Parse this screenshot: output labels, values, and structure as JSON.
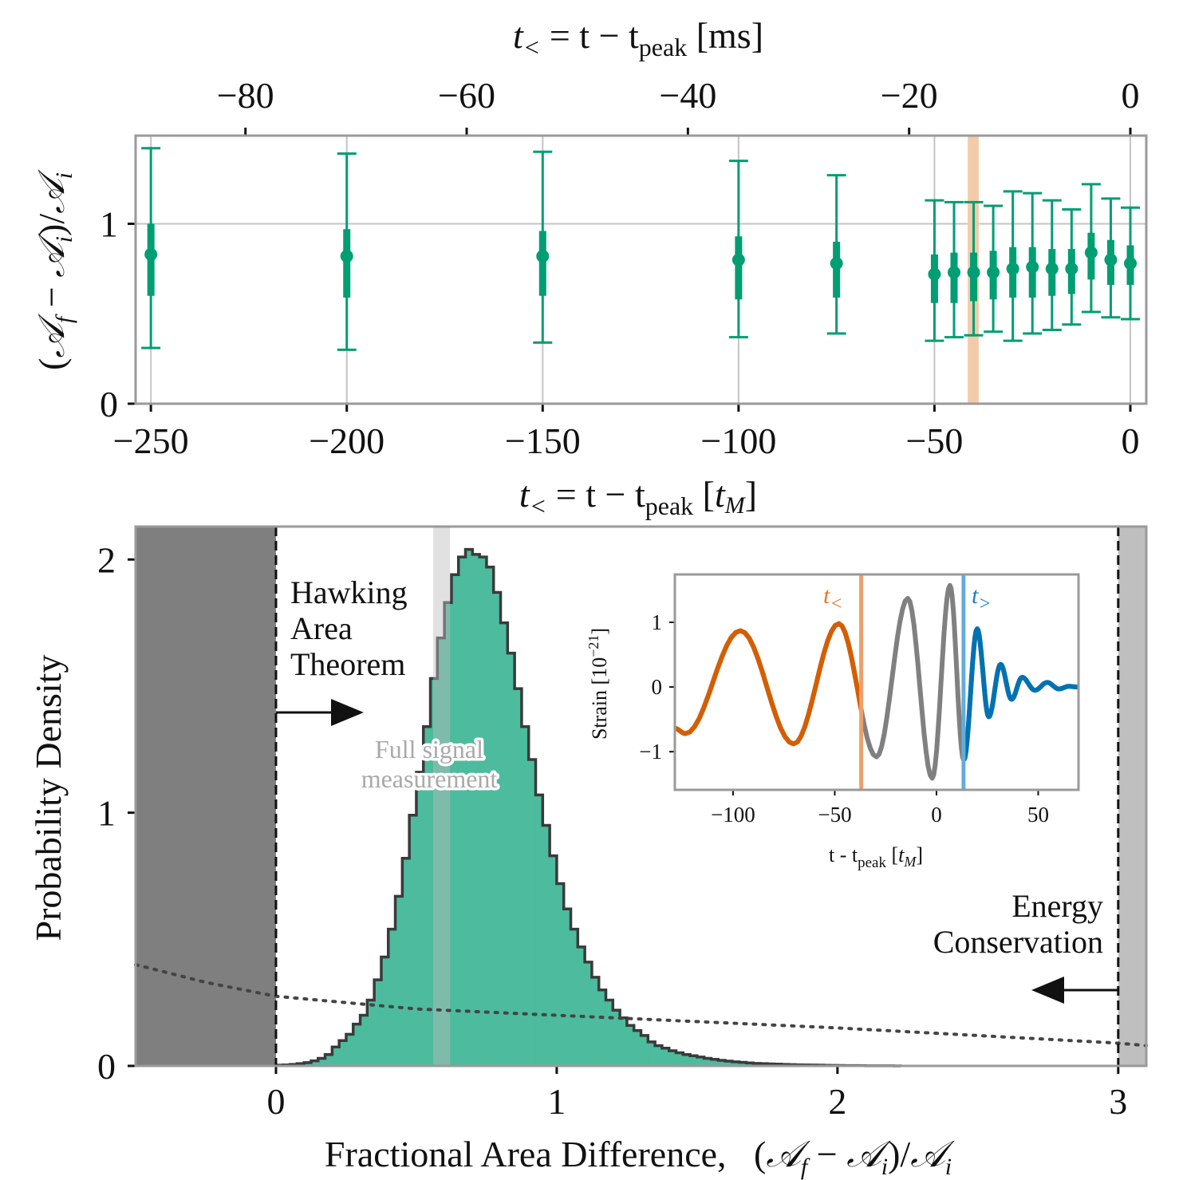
{
  "chart_data": [
    {
      "type": "scatter",
      "panel": "top",
      "xlabel_top": {
        "t": "t",
        "sub": "<",
        "mid": " = t − t",
        "sub2": "peak",
        "unit": " [ms]"
      },
      "xlabel": {
        "t": "t",
        "sub": "<",
        "mid": " = t − t",
        "sub2": "peak",
        "unit_open": " [",
        "unit_t": "t",
        "unit_sub": "M",
        "unit_close": "]"
      },
      "ylabel": {
        "open": "(",
        "a1": "𝒜",
        "s1": "f",
        "minus": " − ",
        "a2": "𝒜",
        "s2": "i",
        "div": ")/",
        "a3": "𝒜",
        "s3": "i"
      },
      "xlim": [
        -253.9,
        4.07
      ],
      "ylim": [
        0,
        1.49
      ],
      "xticks": [
        -250,
        -200,
        -150,
        -100,
        -50,
        0
      ],
      "xtick_labels": [
        "−250",
        "−200",
        "−150",
        "−100",
        "−50",
        "0"
      ],
      "top_xticks_ms": [
        -80,
        -60,
        -40,
        -20,
        0
      ],
      "top_xtick_labels": [
        "−80",
        "−60",
        "−40",
        "−20",
        "0"
      ],
      "yticks": [
        0,
        1
      ],
      "ytick_labels": [
        "0",
        "1"
      ],
      "grid": true,
      "color": "#009e73",
      "highlight_band": {
        "range": [
          -41.5,
          -38.7
        ],
        "color": "#f2cba9"
      },
      "points": [
        {
          "x": -250,
          "y": 0.83,
          "outer": [
            0.31,
            1.42
          ],
          "inner": [
            0.6,
            1.0
          ]
        },
        {
          "x": -200,
          "y": 0.82,
          "outer": [
            0.3,
            1.39
          ],
          "inner": [
            0.59,
            0.97
          ]
        },
        {
          "x": -150,
          "y": 0.82,
          "outer": [
            0.34,
            1.4
          ],
          "inner": [
            0.6,
            0.96
          ]
        },
        {
          "x": -100,
          "y": 0.8,
          "outer": [
            0.37,
            1.35
          ],
          "inner": [
            0.58,
            0.93
          ]
        },
        {
          "x": -75,
          "y": 0.78,
          "outer": [
            0.39,
            1.27
          ],
          "inner": [
            0.59,
            0.9
          ]
        },
        {
          "x": -50,
          "y": 0.72,
          "outer": [
            0.35,
            1.13
          ],
          "inner": [
            0.56,
            0.83
          ]
        },
        {
          "x": -45,
          "y": 0.73,
          "outer": [
            0.37,
            1.12
          ],
          "inner": [
            0.56,
            0.84
          ]
        },
        {
          "x": -40,
          "y": 0.73,
          "outer": [
            0.38,
            1.12
          ],
          "inner": [
            0.57,
            0.84
          ]
        },
        {
          "x": -35,
          "y": 0.73,
          "outer": [
            0.4,
            1.1
          ],
          "inner": [
            0.58,
            0.85
          ]
        },
        {
          "x": -30,
          "y": 0.75,
          "outer": [
            0.35,
            1.18
          ],
          "inner": [
            0.59,
            0.87
          ]
        },
        {
          "x": -25,
          "y": 0.76,
          "outer": [
            0.39,
            1.17
          ],
          "inner": [
            0.59,
            0.87
          ]
        },
        {
          "x": -20,
          "y": 0.75,
          "outer": [
            0.41,
            1.13
          ],
          "inner": [
            0.6,
            0.86
          ]
        },
        {
          "x": -15,
          "y": 0.75,
          "outer": [
            0.44,
            1.08
          ],
          "inner": [
            0.61,
            0.86
          ]
        },
        {
          "x": -10,
          "y": 0.84,
          "outer": [
            0.51,
            1.22
          ],
          "inner": [
            0.69,
            0.95
          ]
        },
        {
          "x": -5,
          "y": 0.8,
          "outer": [
            0.48,
            1.14
          ],
          "inner": [
            0.66,
            0.91
          ]
        },
        {
          "x": 0,
          "y": 0.78,
          "outer": [
            0.47,
            1.09
          ],
          "inner": [
            0.66,
            0.88
          ]
        }
      ]
    },
    {
      "type": "bar",
      "panel": "bottom",
      "xlabel": {
        "text": "Fractional Area Difference,   ",
        "open": "(",
        "a1": "𝒜",
        "s1": "f",
        "minus": " − ",
        "a2": "𝒜",
        "s2": "i",
        "div": ")/",
        "a3": "𝒜",
        "s3": "i"
      },
      "ylabel": "Probability Density",
      "xlim": [
        -0.5,
        3.1
      ],
      "ylim": [
        0,
        2.13
      ],
      "xticks": [
        0,
        1,
        2,
        3
      ],
      "xtick_labels": [
        "0",
        "1",
        "2",
        "3"
      ],
      "yticks": [
        0,
        1,
        2
      ],
      "ytick_labels": [
        "0",
        "1",
        "2"
      ],
      "histogram": {
        "bin_start": 0,
        "bin_width": 0.025,
        "values": [
          0.003,
          0.004,
          0.006,
          0.009,
          0.013,
          0.02,
          0.03,
          0.045,
          0.075,
          0.1,
          0.125,
          0.165,
          0.2,
          0.26,
          0.34,
          0.43,
          0.54,
          0.67,
          0.82,
          0.99,
          1.16,
          1.34,
          1.53,
          1.69,
          1.83,
          1.94,
          2.01,
          2.04,
          2.02,
          2.01,
          1.97,
          1.87,
          1.75,
          1.63,
          1.49,
          1.34,
          1.21,
          1.07,
          0.95,
          0.83,
          0.72,
          0.62,
          0.54,
          0.47,
          0.41,
          0.35,
          0.3,
          0.26,
          0.22,
          0.19,
          0.16,
          0.14,
          0.12,
          0.095,
          0.08,
          0.07,
          0.06,
          0.052,
          0.045,
          0.04,
          0.035,
          0.03,
          0.026,
          0.022,
          0.019,
          0.016,
          0.014,
          0.012,
          0.01,
          0.009,
          0.008,
          0.007,
          0.006,
          0.005,
          0.0045,
          0.004,
          0.0035,
          0.003,
          0.0025,
          0.002,
          0.0015,
          0.001,
          0.001,
          0.0008,
          0.0005,
          0.0004,
          0.0003,
          0.0002,
          0.0001
        ],
        "fill": "#4dbb9d",
        "edge": "#3a3a3a"
      },
      "prior_curve": [
        [
          -0.5,
          0.4
        ],
        [
          -0.25,
          0.33
        ],
        [
          0,
          0.275
        ],
        [
          0.5,
          0.225
        ],
        [
          1,
          0.2
        ],
        [
          1.4,
          0.18
        ],
        [
          2,
          0.15
        ],
        [
          2.5,
          0.12
        ],
        [
          3,
          0.09
        ],
        [
          3.1,
          0.08
        ]
      ],
      "excluded_regions": [
        {
          "range": [
            -0.5,
            0
          ],
          "color": "#7f7f7f"
        },
        {
          "range": [
            3.0,
            3.1
          ],
          "color": "#bfbfbf"
        }
      ],
      "boundary_lines": [
        0,
        3
      ],
      "full_signal_band": {
        "range": [
          0.56,
          0.62
        ],
        "color": "#bdbdbd"
      },
      "annotations": {
        "hawking": [
          "Hawking",
          "Area",
          "Theorem"
        ],
        "energy": [
          "Energy",
          "Conservation"
        ],
        "full_signal": [
          "Full signal",
          "measurement"
        ]
      }
    },
    {
      "type": "line",
      "panel": "inset",
      "xlabel": {
        "t": "t - t",
        "sub": "peak",
        "open": " [",
        "ut": "t",
        "usub": "M",
        "close": "]"
      },
      "ylabel": {
        "text": "Strain [10",
        "sup": "−21",
        "close": "]"
      },
      "xlim": [
        -128.6,
        69.8
      ],
      "ylim": [
        -1.59,
        1.74
      ],
      "xticks": [
        -100,
        -50,
        0,
        50
      ],
      "xtick_labels": [
        "−100",
        "−50",
        "0",
        "50"
      ],
      "yticks": [
        -1,
        0,
        1
      ],
      "ytick_labels": [
        "−1",
        "0",
        "1"
      ],
      "waveform_extrema": [
        [
          -128.6,
          -0.64
        ],
        [
          -123.4,
          -0.72
        ],
        [
          -96.4,
          0.87
        ],
        [
          -70.2,
          -0.88
        ],
        [
          -48,
          0.98
        ],
        [
          -29.5,
          -1.08
        ],
        [
          -14.1,
          1.37
        ],
        [
          -2.1,
          -1.41
        ],
        [
          6.6,
          1.57
        ],
        [
          13.4,
          -1.13
        ],
        [
          20,
          0.9
        ],
        [
          25.7,
          -0.46
        ],
        [
          31.5,
          0.35
        ],
        [
          36.9,
          -0.19
        ],
        [
          42.1,
          0.15
        ],
        [
          48.4,
          -0.05
        ],
        [
          54.4,
          0.07
        ],
        [
          60.2,
          -0.03
        ],
        [
          65,
          0.01
        ],
        [
          69.8,
          0
        ]
      ],
      "t_before": {
        "value": -37,
        "label": "t",
        "sub": "<",
        "color": "#e07b2e",
        "line_color": "#eba06c"
      },
      "t_after": {
        "value": 13.3,
        "label": "t",
        "sub": ">",
        "color": "#1f80c0",
        "line_color": "#64addb"
      },
      "series_colors": {
        "full": "#808080",
        "before": "#d55e00",
        "after": "#0072b2"
      }
    }
  ]
}
